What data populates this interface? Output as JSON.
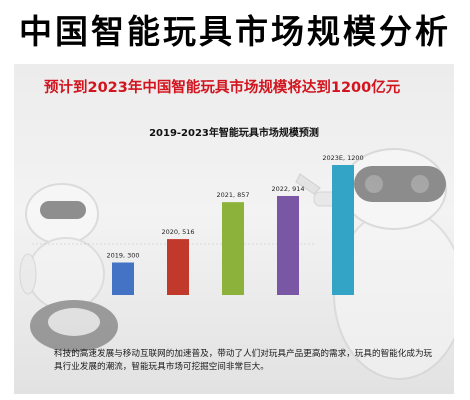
{
  "page": {
    "title": "中国智能玩具市场规模分析",
    "headline": "预计到2023年中国智能玩具市场规模将达到1200亿元",
    "description": "科技的高速发展与移动互联网的加速普及，带动了人们对玩具产品更高的需求，玩具的智能化成为玩具行业发展的潮流，智能玩具市场可挖掘空间非常巨大。"
  },
  "chart_data": {
    "type": "bar",
    "title": "2019-2023年智能玩具市场规模预测",
    "xlabel": "",
    "ylabel": "",
    "categories": [
      "2019",
      "2020",
      "2021",
      "2022",
      "2023E"
    ],
    "values": [
      300,
      516,
      857,
      914,
      1200
    ],
    "data_labels": [
      "2019, 300",
      "2020, 516",
      "2021, 857",
      "2022, 914",
      "2023E, 1200"
    ],
    "colors": [
      "#4472c4",
      "#c0392b",
      "#8cb23c",
      "#7a57a4",
      "#33a4c6"
    ],
    "ylim": [
      0,
      1200
    ],
    "grid": false,
    "legend": "none"
  }
}
